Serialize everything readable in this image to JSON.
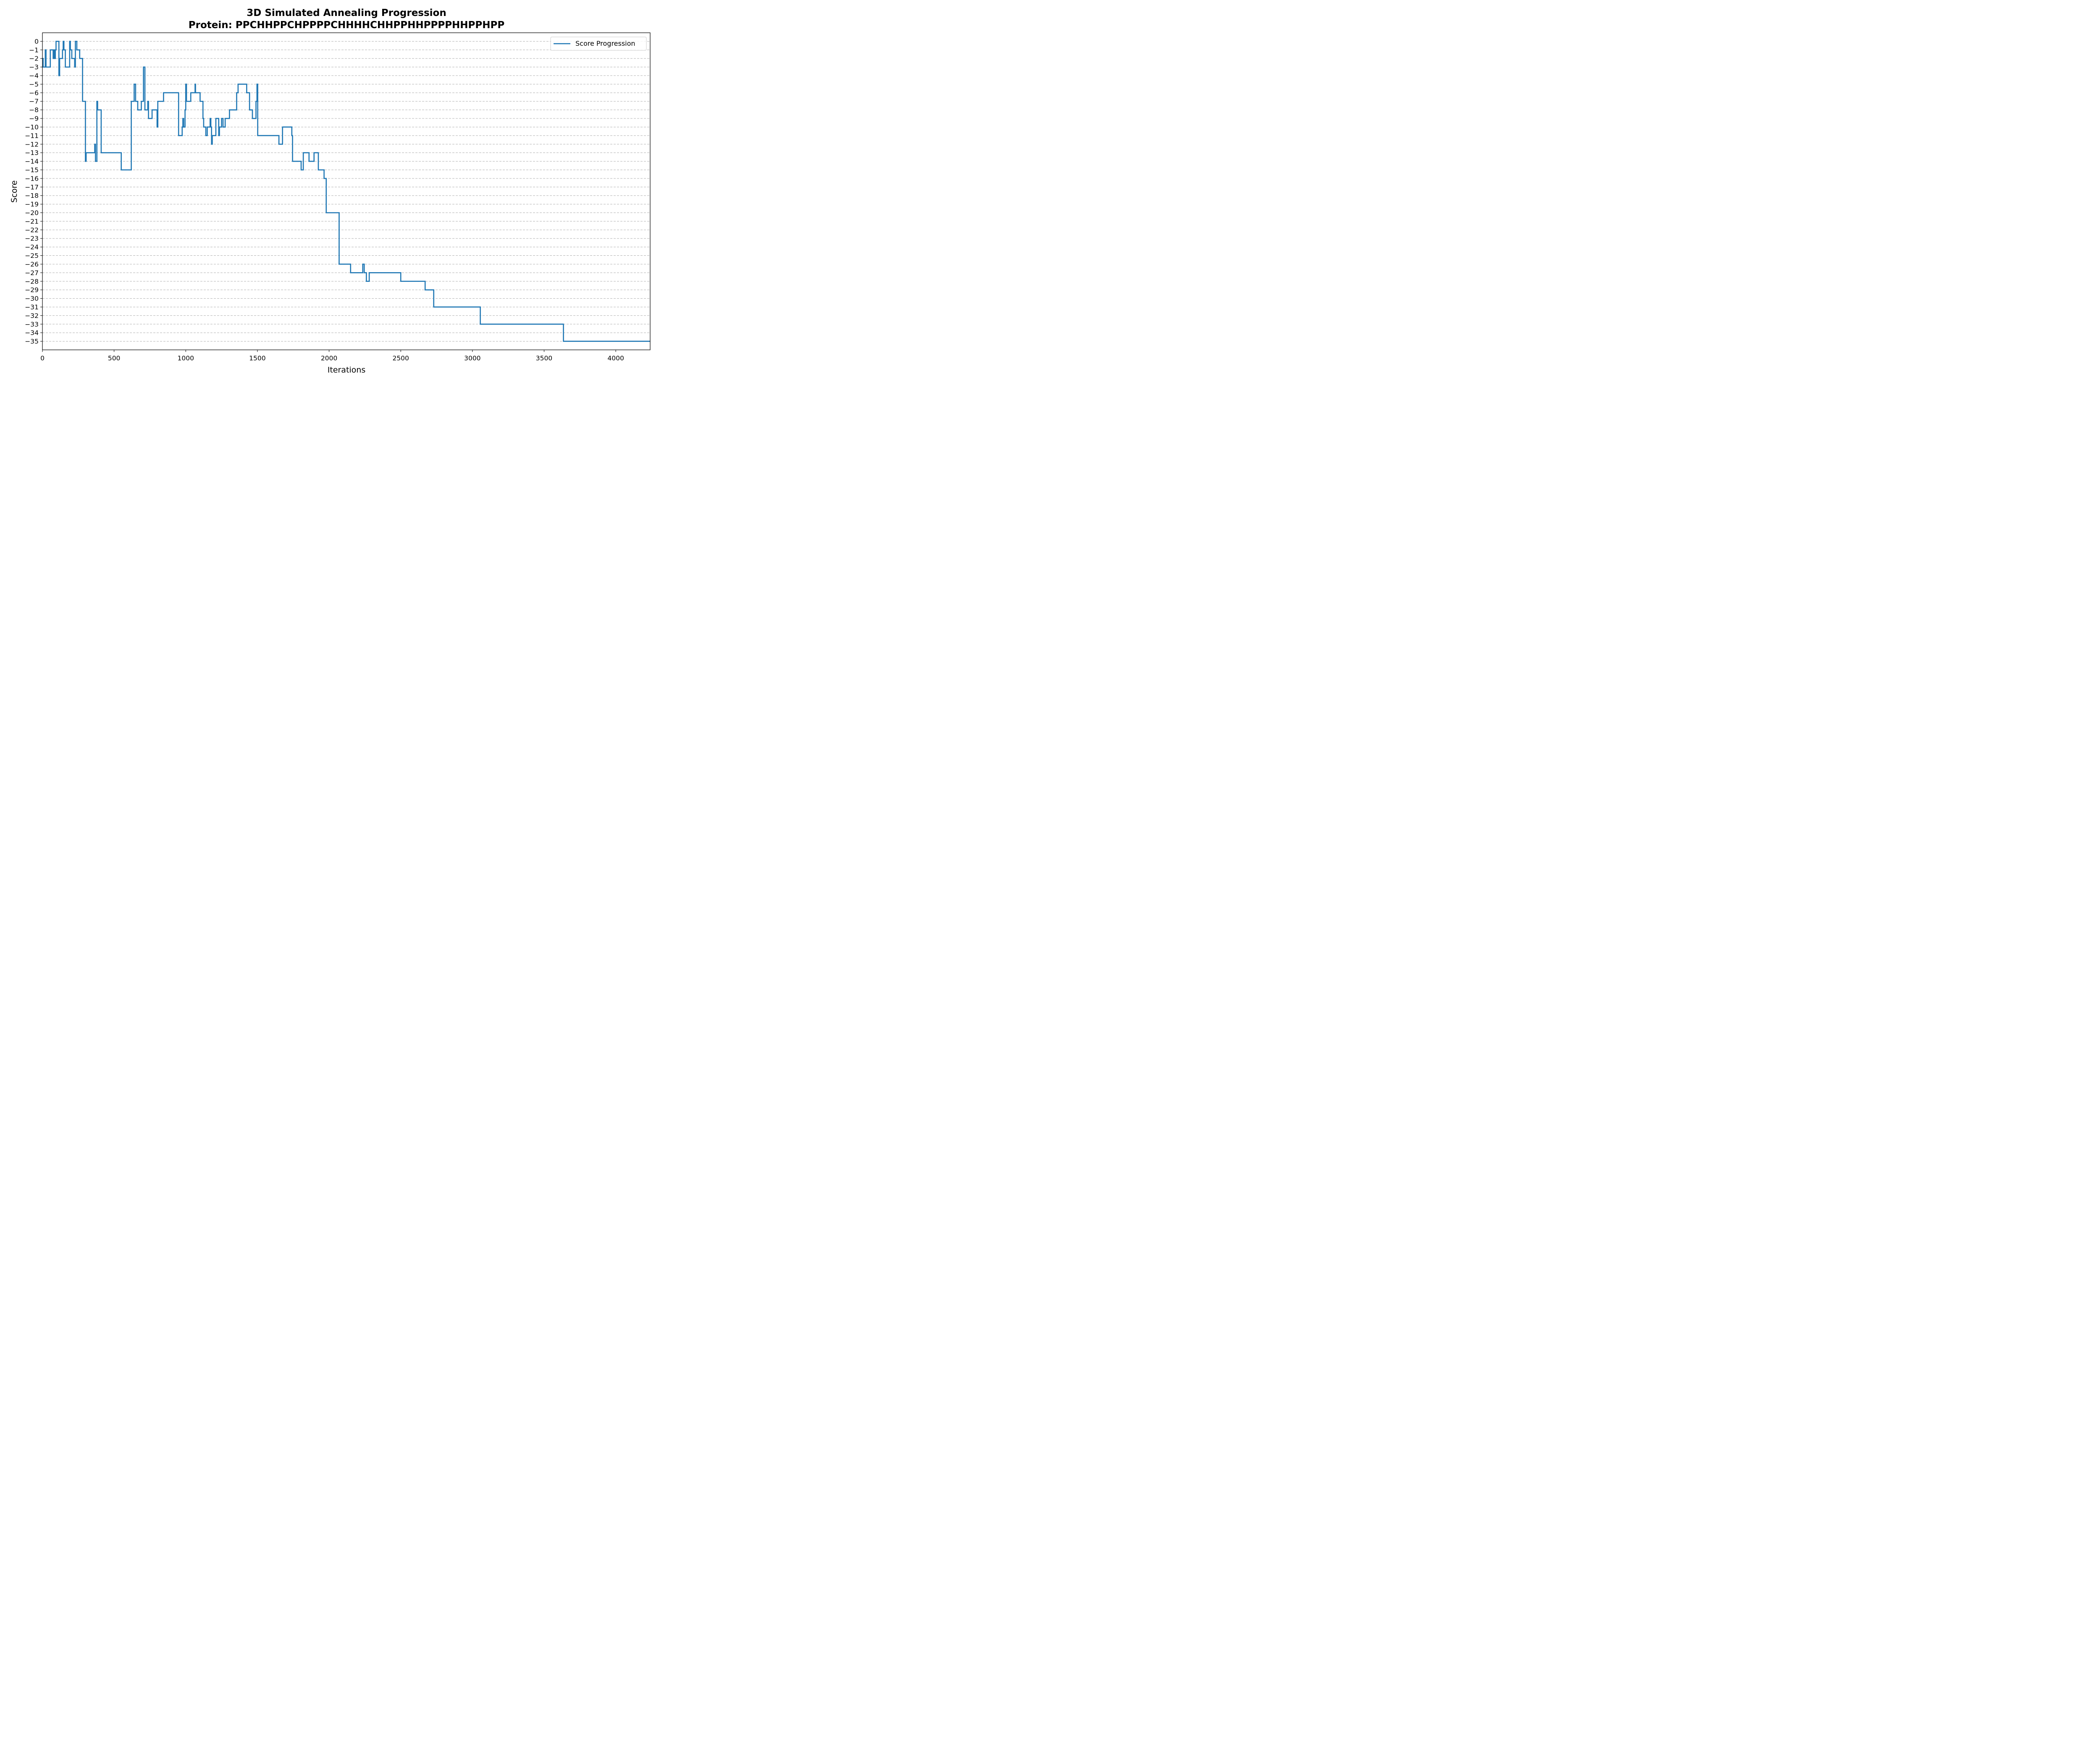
{
  "chart_data": {
    "type": "line",
    "title": "3D Simulated Annealing Progression",
    "subtitle": "Protein: PPCHHPPCHPPPPCHHHHCHHPPHHPPPPHHPPHPP",
    "xlabel": "Iterations",
    "ylabel": "Score",
    "xlim": [
      0,
      4240
    ],
    "ylim": [
      -36,
      1
    ],
    "x_ticks": [
      0,
      500,
      1000,
      1500,
      2000,
      2500,
      3000,
      3500,
      4000
    ],
    "y_ticks": [
      0,
      -1,
      -2,
      -3,
      -4,
      -5,
      -6,
      -7,
      -8,
      -9,
      -10,
      -11,
      -12,
      -13,
      -14,
      -15,
      -16,
      -17,
      -18,
      -19,
      -20,
      -21,
      -22,
      -23,
      -24,
      -25,
      -26,
      -27,
      -28,
      -29,
      -30,
      -31,
      -32,
      -33,
      -34,
      -35
    ],
    "grid": "horizontal dashed",
    "legend_position": "upper right",
    "series": [
      {
        "name": "Score Progression",
        "color": "#1f77b4",
        "step": "post",
        "points": [
          [
            0,
            -2
          ],
          [
            5,
            -3
          ],
          [
            20,
            -1
          ],
          [
            25,
            -3
          ],
          [
            55,
            -1
          ],
          [
            75,
            -2
          ],
          [
            80,
            -1
          ],
          [
            85,
            -2
          ],
          [
            90,
            -1
          ],
          [
            95,
            0
          ],
          [
            115,
            -4
          ],
          [
            120,
            -2
          ],
          [
            140,
            -1
          ],
          [
            145,
            0
          ],
          [
            150,
            -1
          ],
          [
            160,
            -3
          ],
          [
            190,
            0
          ],
          [
            195,
            -1
          ],
          [
            205,
            -2
          ],
          [
            225,
            -3
          ],
          [
            230,
            0
          ],
          [
            240,
            -1
          ],
          [
            260,
            -2
          ],
          [
            280,
            -7
          ],
          [
            300,
            -14
          ],
          [
            305,
            -13
          ],
          [
            365,
            -12
          ],
          [
            370,
            -14
          ],
          [
            380,
            -7
          ],
          [
            385,
            -8
          ],
          [
            410,
            -13
          ],
          [
            550,
            -15
          ],
          [
            620,
            -7
          ],
          [
            640,
            -5
          ],
          [
            650,
            -7
          ],
          [
            665,
            -8
          ],
          [
            690,
            -7
          ],
          [
            705,
            -3
          ],
          [
            715,
            -8
          ],
          [
            735,
            -7
          ],
          [
            740,
            -9
          ],
          [
            765,
            -8
          ],
          [
            800,
            -10
          ],
          [
            805,
            -7
          ],
          [
            845,
            -6
          ],
          [
            950,
            -11
          ],
          [
            975,
            -10
          ],
          [
            980,
            -9
          ],
          [
            985,
            -10
          ],
          [
            995,
            -8
          ],
          [
            1000,
            -5
          ],
          [
            1005,
            -7
          ],
          [
            1035,
            -6
          ],
          [
            1065,
            -5
          ],
          [
            1068,
            -6
          ],
          [
            1100,
            -7
          ],
          [
            1120,
            -9
          ],
          [
            1125,
            -10
          ],
          [
            1140,
            -11
          ],
          [
            1150,
            -10
          ],
          [
            1170,
            -9
          ],
          [
            1175,
            -10
          ],
          [
            1180,
            -12
          ],
          [
            1185,
            -11
          ],
          [
            1210,
            -9
          ],
          [
            1230,
            -11
          ],
          [
            1235,
            -10
          ],
          [
            1250,
            -9
          ],
          [
            1260,
            -10
          ],
          [
            1275,
            -9
          ],
          [
            1305,
            -8
          ],
          [
            1355,
            -6
          ],
          [
            1365,
            -5
          ],
          [
            1425,
            -6
          ],
          [
            1445,
            -8
          ],
          [
            1465,
            -9
          ],
          [
            1490,
            -7
          ],
          [
            1497,
            -5
          ],
          [
            1502,
            -11
          ],
          [
            1650,
            -12
          ],
          [
            1675,
            -10
          ],
          [
            1740,
            -11
          ],
          [
            1745,
            -14
          ],
          [
            1805,
            -15
          ],
          [
            1820,
            -13
          ],
          [
            1860,
            -14
          ],
          [
            1895,
            -13
          ],
          [
            1925,
            -15
          ],
          [
            1965,
            -16
          ],
          [
            1980,
            -20
          ],
          [
            2070,
            -26
          ],
          [
            2150,
            -27
          ],
          [
            2235,
            -26
          ],
          [
            2245,
            -27
          ],
          [
            2260,
            -28
          ],
          [
            2280,
            -27
          ],
          [
            2500,
            -28
          ],
          [
            2670,
            -29
          ],
          [
            2730,
            -31
          ],
          [
            3055,
            -33
          ],
          [
            3635,
            -35
          ],
          [
            4240,
            -35
          ]
        ]
      }
    ]
  }
}
